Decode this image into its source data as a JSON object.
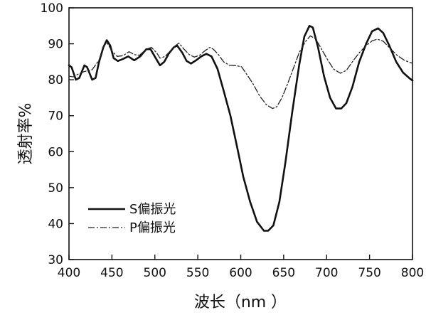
{
  "chart_data": {
    "type": "line",
    "title": "",
    "xlabel": "波长（nm ）",
    "ylabel": "透射率%",
    "xlim": [
      400,
      800
    ],
    "ylim": [
      30,
      100
    ],
    "grid": false,
    "legend_position": "bottom-left",
    "x_ticks": [
      400,
      450,
      500,
      550,
      600,
      650,
      700,
      750,
      800
    ],
    "y_ticks": [
      30,
      40,
      50,
      60,
      70,
      80,
      90,
      100
    ],
    "series": [
      {
        "name": "S偏振光",
        "style": "solid",
        "color": "#111111",
        "points": [
          [
            400,
            84
          ],
          [
            403,
            83.5
          ],
          [
            408,
            80
          ],
          [
            412,
            80.5
          ],
          [
            418,
            84
          ],
          [
            421,
            83.5
          ],
          [
            427,
            80
          ],
          [
            431,
            80.5
          ],
          [
            435,
            85
          ],
          [
            440,
            89
          ],
          [
            444,
            91
          ],
          [
            448,
            89.5
          ],
          [
            452,
            86
          ],
          [
            457,
            85.2
          ],
          [
            463,
            85.8
          ],
          [
            469,
            86.5
          ],
          [
            476,
            85.4
          ],
          [
            483,
            86.5
          ],
          [
            490,
            88.5
          ],
          [
            495,
            88.5
          ],
          [
            501,
            86
          ],
          [
            506,
            84
          ],
          [
            511,
            85
          ],
          [
            516,
            87.2
          ],
          [
            522,
            89
          ],
          [
            526,
            89.5
          ],
          [
            532,
            87.5
          ],
          [
            537,
            85.2
          ],
          [
            542,
            84.5
          ],
          [
            548,
            85.4
          ],
          [
            554,
            86.5
          ],
          [
            560,
            87.2
          ],
          [
            566,
            86.5
          ],
          [
            573,
            83
          ],
          [
            580,
            77
          ],
          [
            588,
            70
          ],
          [
            596,
            61
          ],
          [
            603,
            53
          ],
          [
            611,
            46
          ],
          [
            619,
            40.5
          ],
          [
            627,
            38
          ],
          [
            632,
            38
          ],
          [
            638,
            39.5
          ],
          [
            645,
            46
          ],
          [
            652,
            57
          ],
          [
            660,
            71
          ],
          [
            668,
            84
          ],
          [
            674,
            92
          ],
          [
            680,
            95
          ],
          [
            684,
            94.5
          ],
          [
            690,
            89
          ],
          [
            697,
            81
          ],
          [
            704,
            75
          ],
          [
            711,
            72
          ],
          [
            717,
            72
          ],
          [
            723,
            73.5
          ],
          [
            730,
            78
          ],
          [
            738,
            85
          ],
          [
            746,
            90
          ],
          [
            753,
            93.5
          ],
          [
            760,
            94.3
          ],
          [
            766,
            93
          ],
          [
            773,
            89.5
          ],
          [
            781,
            85
          ],
          [
            789,
            82
          ],
          [
            797,
            80.3
          ],
          [
            800,
            79.8
          ]
        ]
      },
      {
        "name": "P偏振光",
        "style": "dashdot",
        "color": "#222222",
        "points": [
          [
            400,
            81
          ],
          [
            405,
            80.8
          ],
          [
            410,
            81.5
          ],
          [
            418,
            82.3
          ],
          [
            427,
            82.8
          ],
          [
            435,
            85.5
          ],
          [
            441,
            89.5
          ],
          [
            444,
            90.4
          ],
          [
            450,
            88
          ],
          [
            456,
            86.5
          ],
          [
            463,
            86.7
          ],
          [
            470,
            87.8
          ],
          [
            476,
            87
          ],
          [
            482,
            86.8
          ],
          [
            490,
            88.5
          ],
          [
            496,
            89
          ],
          [
            502,
            87.5
          ],
          [
            506,
            86
          ],
          [
            512,
            86.5
          ],
          [
            518,
            88
          ],
          [
            524,
            89.5
          ],
          [
            528,
            90.2
          ],
          [
            534,
            88.5
          ],
          [
            540,
            87
          ],
          [
            546,
            86.3
          ],
          [
            552,
            86.8
          ],
          [
            558,
            88
          ],
          [
            564,
            89
          ],
          [
            568,
            88.5
          ],
          [
            574,
            87
          ],
          [
            580,
            85
          ],
          [
            587,
            84
          ],
          [
            595,
            83.9
          ],
          [
            601,
            83.6
          ],
          [
            607,
            81.5
          ],
          [
            614,
            79
          ],
          [
            622,
            75.5
          ],
          [
            630,
            73
          ],
          [
            637,
            72
          ],
          [
            642,
            72.5
          ],
          [
            648,
            75
          ],
          [
            654,
            78.5
          ],
          [
            661,
            83
          ],
          [
            668,
            87.5
          ],
          [
            675,
            90.5
          ],
          [
            681,
            92.2
          ],
          [
            687,
            91.4
          ],
          [
            693,
            89
          ],
          [
            700,
            86
          ],
          [
            708,
            83
          ],
          [
            716,
            81.8
          ],
          [
            723,
            82.6
          ],
          [
            730,
            85
          ],
          [
            738,
            87.5
          ],
          [
            746,
            89.5
          ],
          [
            753,
            90.8
          ],
          [
            759,
            91.3
          ],
          [
            766,
            90.7
          ],
          [
            774,
            88.7
          ],
          [
            782,
            86.8
          ],
          [
            790,
            85.5
          ],
          [
            797,
            84.8
          ],
          [
            800,
            84.6
          ]
        ]
      }
    ]
  }
}
